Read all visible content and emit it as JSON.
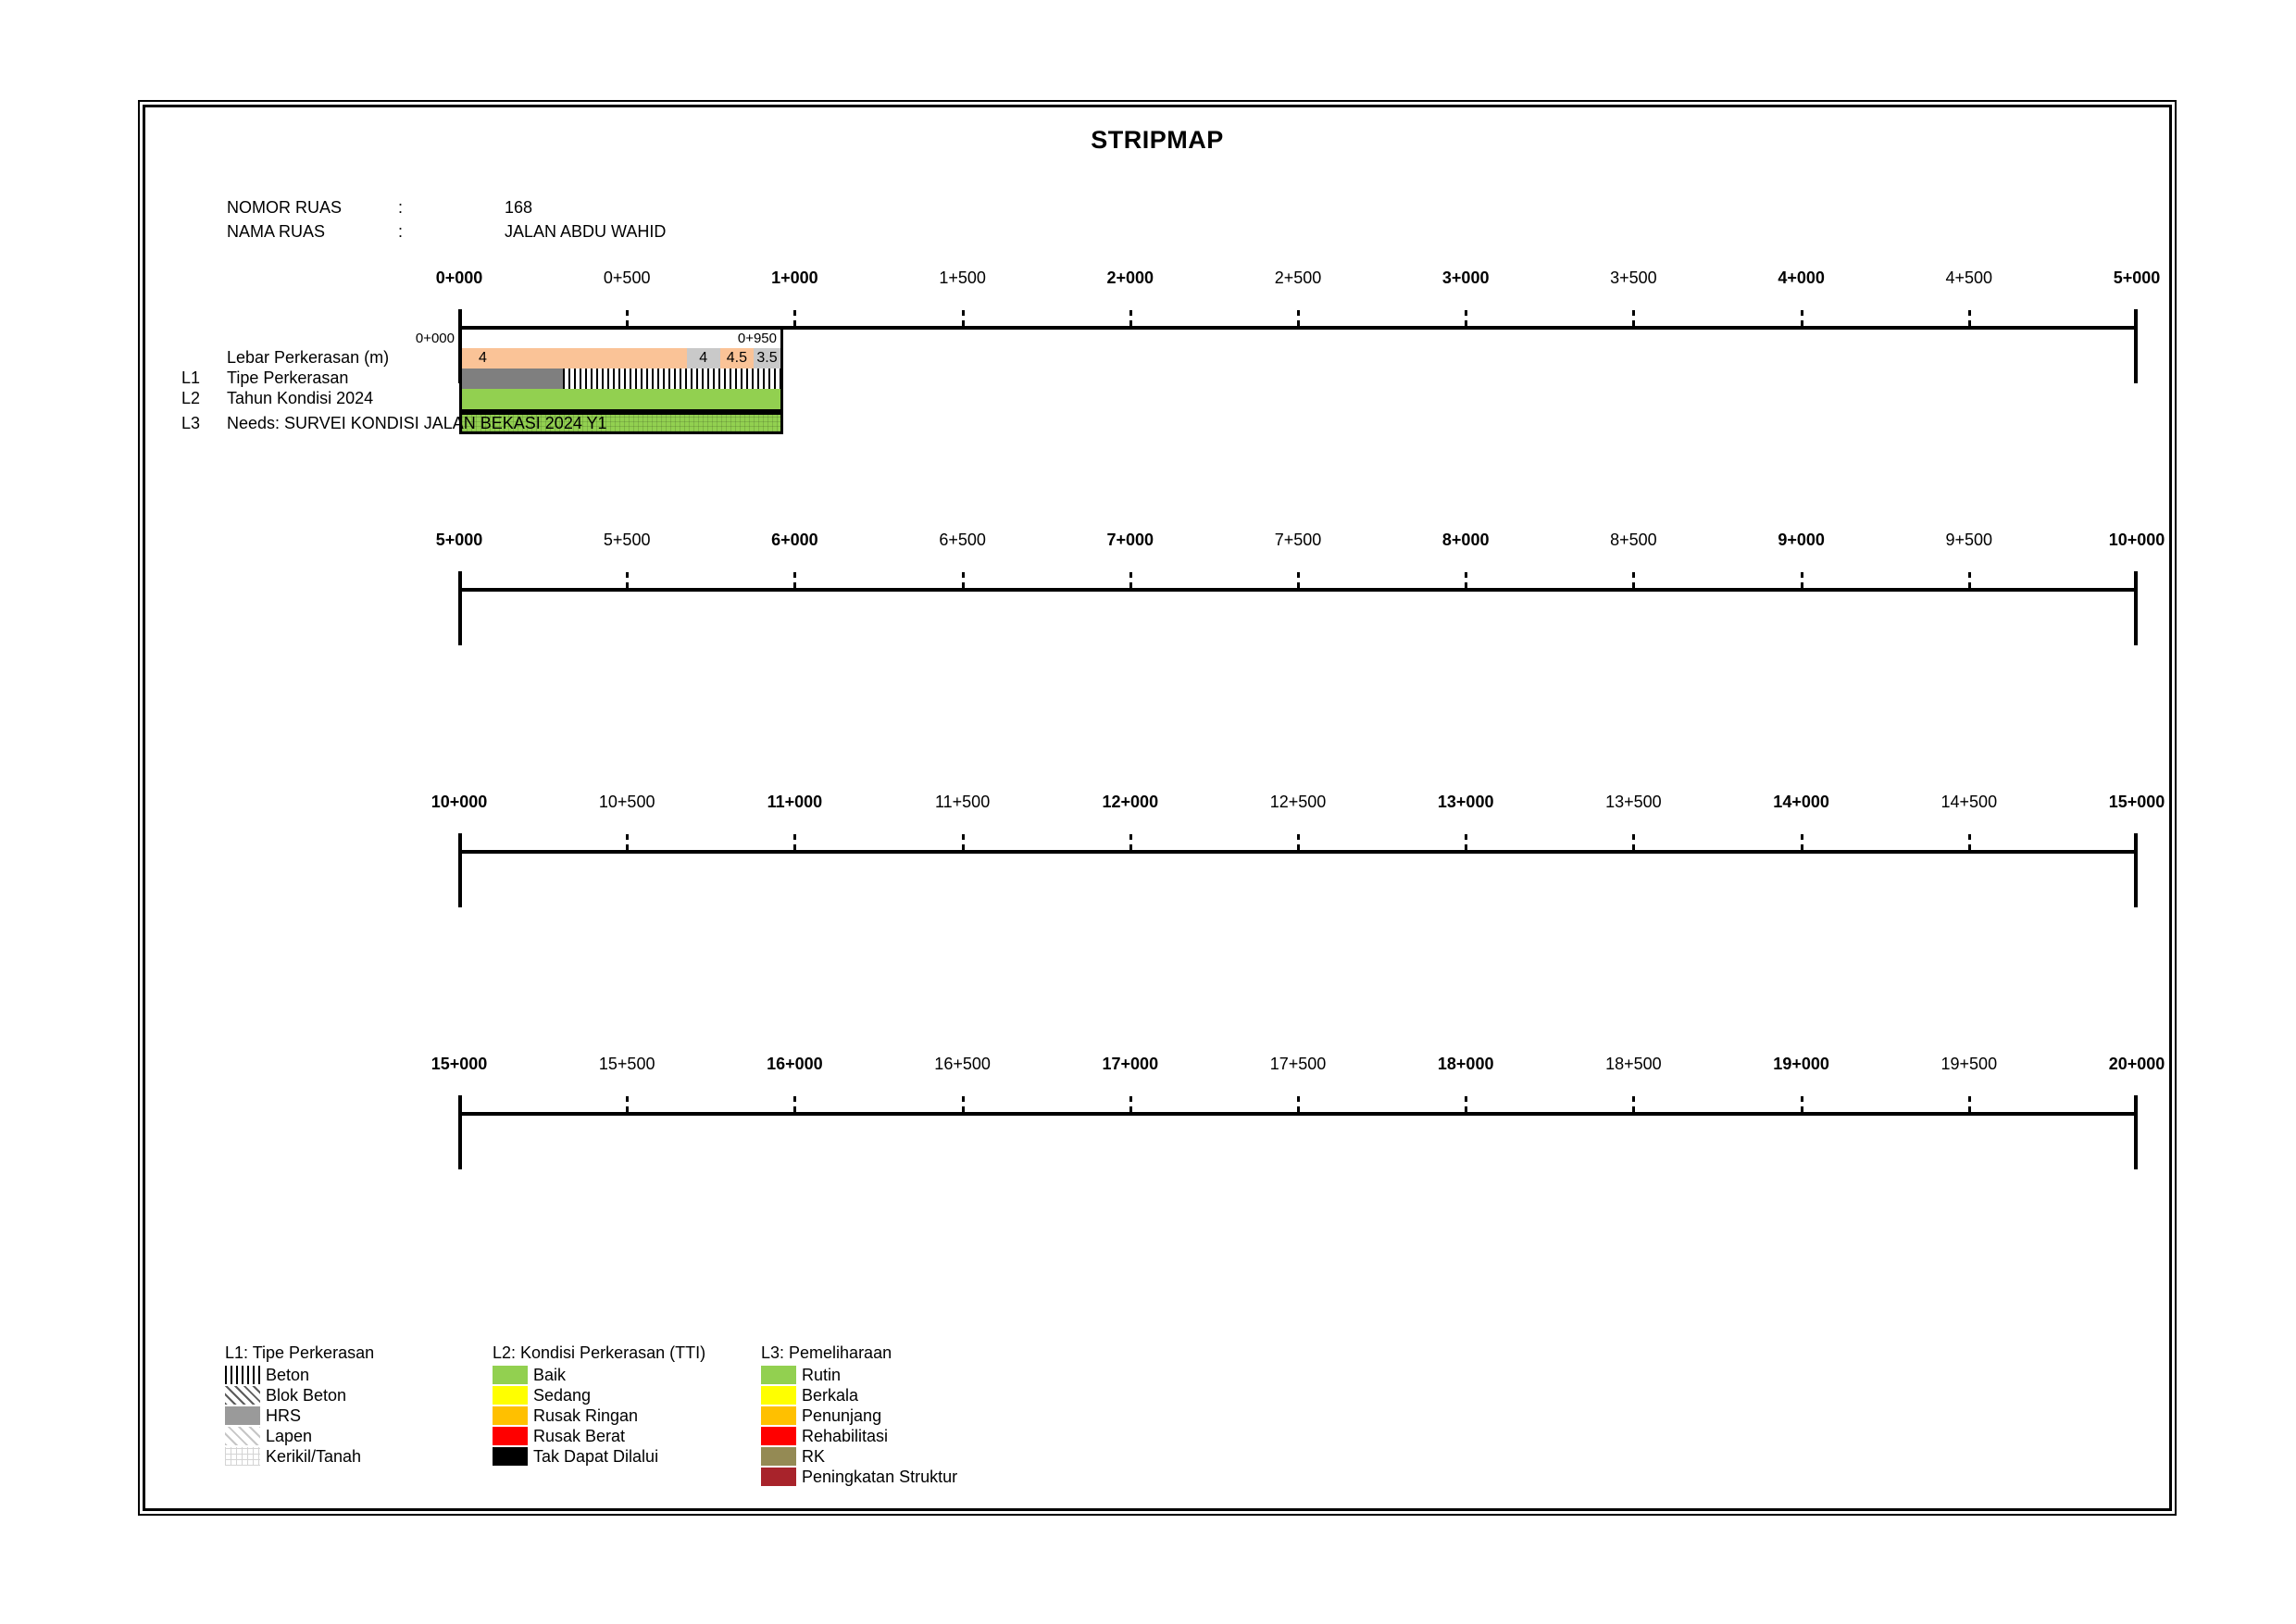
{
  "page": {
    "title": "STRIPMAP"
  },
  "header": {
    "rows": [
      {
        "label": "NOMOR RUAS",
        "separator": ":",
        "value": "168"
      },
      {
        "label": "NAMA RUAS",
        "separator": ":",
        "value": "JALAN ABDU WAHID"
      }
    ]
  },
  "strip": {
    "start_chainage_label": "0+000",
    "end_chainage_label": "0+950",
    "row_labels": [
      {
        "code": "",
        "label": "Lebar Perkerasan (m)"
      },
      {
        "code": "L1",
        "label": "Tipe Perkerasan"
      },
      {
        "code": "L2",
        "label": "Tahun Kondisi 2024"
      },
      {
        "code": "L3",
        "label": "Needs: SURVEI KONDISI JALAN BEKASI 2024 Y1"
      }
    ]
  },
  "chart_data": {
    "type": "bar",
    "subtype": "stripmap-linear-referencing",
    "title": "STRIPMAP",
    "x_unit": "chainage (km+m)",
    "x_range_m": [
      0,
      20000
    ],
    "row_ranges_m": [
      [
        0,
        5000
      ],
      [
        5000,
        10000
      ],
      [
        10000,
        15000
      ],
      [
        15000,
        20000
      ]
    ],
    "tick_interval_m": 500,
    "data_extent_m": {
      "from": 0,
      "to": 950
    },
    "series": [
      {
        "name": "Lebar Perkerasan (m)",
        "code": "",
        "segments": [
          {
            "from_m": 0,
            "to_m": 670,
            "label": "4",
            "fill": "#FAC397"
          },
          {
            "from_m": 670,
            "to_m": 770,
            "label": "4",
            "fill": "#C9C9C9"
          },
          {
            "from_m": 770,
            "to_m": 870,
            "label": "4.5",
            "fill": "#FAC397"
          },
          {
            "from_m": 870,
            "to_m": 950,
            "label": "3.5",
            "fill": "#C9C9C9"
          }
        ]
      },
      {
        "name": "Tipe Perkerasan",
        "code": "L1",
        "segments": [
          {
            "from_m": 0,
            "to_m": 300,
            "label": "",
            "value": "HRS",
            "pattern": "hrs-strip"
          },
          {
            "from_m": 300,
            "to_m": 950,
            "label": "",
            "value": "Beton",
            "pattern": "beton"
          }
        ]
      },
      {
        "name": "Tahun Kondisi 2024",
        "code": "L2",
        "segments": [
          {
            "from_m": 0,
            "to_m": 950,
            "label": "",
            "value": "Baik",
            "fill": "#92D050"
          }
        ]
      },
      {
        "name": "Needs: SURVEI KONDISI JALAN BEKASI 2024 Y1",
        "code": "L3",
        "segments": [
          {
            "from_m": 0,
            "to_m": 950,
            "label": "",
            "value": "Rutin",
            "pattern": "rutin-grid"
          }
        ]
      }
    ]
  },
  "rulers": [
    {
      "labels": [
        "0+000",
        "0+500",
        "1+000",
        "1+500",
        "2+000",
        "2+500",
        "3+000",
        "3+500",
        "4+000",
        "4+500",
        "5+000"
      ]
    },
    {
      "labels": [
        "5+000",
        "5+500",
        "6+000",
        "6+500",
        "7+000",
        "7+500",
        "8+000",
        "8+500",
        "9+000",
        "9+500",
        "10+000"
      ]
    },
    {
      "labels": [
        "10+000",
        "10+500",
        "11+000",
        "11+500",
        "12+000",
        "12+500",
        "13+000",
        "13+500",
        "14+000",
        "14+500",
        "15+000"
      ]
    },
    {
      "labels": [
        "15+000",
        "15+500",
        "16+000",
        "16+500",
        "17+000",
        "17+500",
        "18+000",
        "18+500",
        "19+000",
        "19+500",
        "20+000"
      ]
    }
  ],
  "legends": [
    {
      "title": "L1: Tipe Perkerasan",
      "items": [
        {
          "label": "Beton",
          "pattern": "beton"
        },
        {
          "label": "Blok Beton",
          "pattern": "blok-beton"
        },
        {
          "label": "HRS",
          "pattern": "hrs"
        },
        {
          "label": "Lapen",
          "pattern": "lapen"
        },
        {
          "label": "Kerikil/Tanah",
          "pattern": "kerikil-tanah"
        }
      ]
    },
    {
      "title": "L2: Kondisi Perkerasan (TTI)",
      "items": [
        {
          "label": "Baik",
          "color": "#92D050"
        },
        {
          "label": "Sedang",
          "color": "#FFFF00"
        },
        {
          "label": "Rusak Ringan",
          "color": "#FFC000"
        },
        {
          "label": "Rusak Berat",
          "color": "#FF0000"
        },
        {
          "label": "Tak Dapat Dilalui",
          "color": "#000000"
        }
      ]
    },
    {
      "title": "L3: Pemeliharaan",
      "items": [
        {
          "label": "Rutin",
          "color": "#92D050"
        },
        {
          "label": "Berkala",
          "color": "#FFFF00"
        },
        {
          "label": "Penunjang",
          "color": "#FFC000"
        },
        {
          "label": "Rehabilitasi",
          "color": "#FF0000"
        },
        {
          "label": "RK",
          "color": "#948A54"
        },
        {
          "label": "Peningkatan Struktur",
          "color": "#A8232B"
        }
      ]
    }
  ],
  "colors": {
    "baik_green": "#92D050",
    "sedang_yellow": "#FFFF00",
    "rusak_ringan_orange": "#FFC000",
    "rusak_berat_red": "#FF0000",
    "tak_dapat_dilalui_black": "#000000",
    "rk_olive": "#948A54",
    "peningkatan_struktur_maroon": "#A8232B",
    "lebar_peach": "#FAC397",
    "lebar_gray": "#C9C9C9",
    "hrs_gray": "#7F7F7F"
  }
}
